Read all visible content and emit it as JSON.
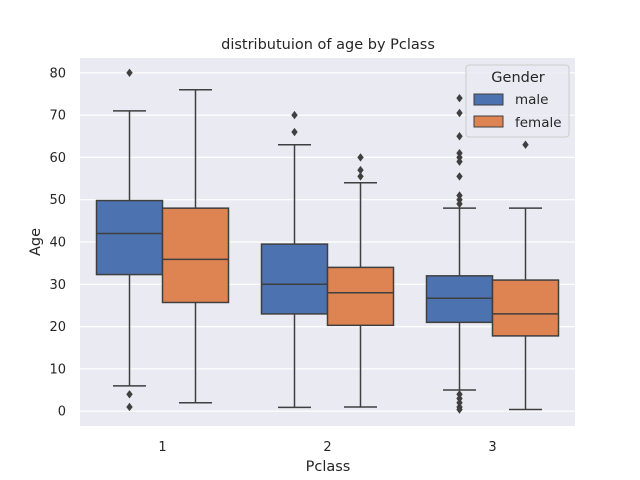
{
  "chart_data": {
    "type": "boxplot",
    "title": "distributuion of age by Pclass",
    "xlabel": "Pclass",
    "ylabel": "Age",
    "categories": [
      "1",
      "2",
      "3"
    ],
    "ylim": [
      -3.5,
      83.5
    ],
    "yticks": [
      0,
      10,
      20,
      30,
      40,
      50,
      60,
      70,
      80
    ],
    "grid": true,
    "legend": {
      "title": "Gender",
      "position": "top-right"
    },
    "series": [
      {
        "name": "male",
        "color": "#4C72B0",
        "boxes": [
          {
            "whisker_low": 6,
            "q1": 32.3,
            "median": 42,
            "q3": 49.8,
            "whisker_high": 71,
            "outliers": [
              80,
              4,
              1
            ]
          },
          {
            "whisker_low": 0.9,
            "q1": 23,
            "median": 30,
            "q3": 39.5,
            "whisker_high": 63,
            "outliers": [
              70,
              66
            ]
          },
          {
            "whisker_low": 5,
            "q1": 21,
            "median": 26.7,
            "q3": 32,
            "whisker_high": 48,
            "outliers": [
              74,
              70.5,
              65,
              61,
              60,
              59,
              55.5,
              51,
              50,
              49,
              4,
              3,
              2,
              1,
              0.4
            ]
          }
        ]
      },
      {
        "name": "female",
        "color": "#DD8452",
        "boxes": [
          {
            "whisker_low": 2,
            "q1": 25.7,
            "median": 35.9,
            "q3": 48,
            "whisker_high": 76,
            "outliers": []
          },
          {
            "whisker_low": 1,
            "q1": 20.3,
            "median": 28,
            "q3": 34,
            "whisker_high": 54,
            "outliers": [
              60,
              57,
              55.5
            ]
          },
          {
            "whisker_low": 0.4,
            "q1": 17.8,
            "median": 23,
            "q3": 31,
            "whisker_high": 48,
            "outliers": [
              63
            ]
          }
        ]
      }
    ]
  }
}
